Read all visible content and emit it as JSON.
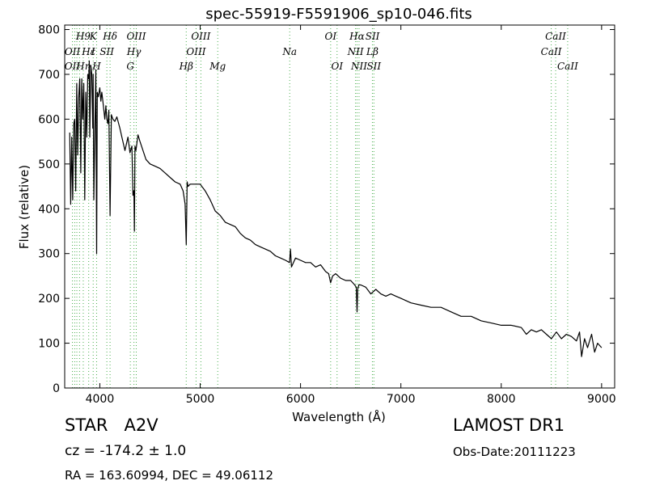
{
  "chart_data": {
    "type": "line",
    "title": "spec-55919-F5591906_sp10-046.fits",
    "xlabel": "Wavelength (Å)",
    "ylabel": "Flux (relative)",
    "xlim": [
      3650,
      9130
    ],
    "ylim": [
      0,
      810
    ],
    "xticks": [
      4000,
      5000,
      6000,
      7000,
      8000,
      9000
    ],
    "yticks": [
      0,
      100,
      200,
      300,
      400,
      500,
      600,
      700,
      800
    ],
    "grid": false,
    "series": [
      {
        "color": "#000000",
        "x": [
          3700,
          3710,
          3720,
          3730,
          3740,
          3750,
          3760,
          3770,
          3780,
          3790,
          3800,
          3810,
          3820,
          3830,
          3840,
          3850,
          3860,
          3870,
          3880,
          3889,
          3895,
          3900,
          3910,
          3920,
          3930,
          3934,
          3940,
          3950,
          3960,
          3968,
          3975,
          3985,
          4000,
          4010,
          4020,
          4030,
          4040,
          4050,
          4060,
          4070,
          4080,
          4090,
          4102,
          4115,
          4130,
          4150,
          4170,
          4200,
          4220,
          4250,
          4280,
          4300,
          4320,
          4330,
          4340,
          4345,
          4350,
          4360,
          4380,
          4400,
          4430,
          4460,
          4500,
          4550,
          4600,
          4650,
          4700,
          4750,
          4800,
          4830,
          4850,
          4861,
          4870,
          4880,
          4900,
          4950,
          5000,
          5050,
          5100,
          5150,
          5200,
          5250,
          5300,
          5350,
          5400,
          5450,
          5500,
          5550,
          5600,
          5650,
          5700,
          5750,
          5800,
          5850,
          5890,
          5900,
          5910,
          5950,
          6000,
          6050,
          6100,
          6150,
          6200,
          6250,
          6280,
          6300,
          6320,
          6350,
          6400,
          6450,
          6500,
          6540,
          6555,
          6563,
          6570,
          6580,
          6600,
          6650,
          6700,
          6750,
          6800,
          6850,
          6900,
          6950,
          7000,
          7100,
          7200,
          7300,
          7400,
          7500,
          7600,
          7700,
          7800,
          7900,
          8000,
          8100,
          8200,
          8250,
          8300,
          8350,
          8400,
          8450,
          8500,
          8550,
          8600,
          8650,
          8700,
          8750,
          8780,
          8800,
          8830,
          8860,
          8900,
          8930,
          8960,
          9000
        ],
        "y": [
          570,
          410,
          560,
          420,
          590,
          600,
          440,
          680,
          520,
          650,
          690,
          480,
          690,
          600,
          680,
          420,
          660,
          560,
          700,
          690,
          730,
          560,
          720,
          700,
          580,
          700,
          420,
          560,
          710,
          300,
          660,
          650,
          670,
          640,
          660,
          640,
          620,
          600,
          630,
          600,
          590,
          620,
          385,
          610,
          600,
          595,
          605,
          580,
          560,
          530,
          560,
          525,
          540,
          430,
          440,
          350,
          540,
          530,
          565,
          550,
          530,
          510,
          500,
          495,
          490,
          480,
          470,
          460,
          455,
          440,
          410,
          320,
          460,
          450,
          455,
          455,
          455,
          440,
          420,
          395,
          385,
          370,
          365,
          360,
          345,
          335,
          330,
          320,
          315,
          310,
          305,
          295,
          290,
          285,
          280,
          310,
          270,
          290,
          285,
          280,
          280,
          270,
          275,
          260,
          255,
          235,
          250,
          255,
          245,
          240,
          240,
          230,
          225,
          170,
          220,
          230,
          230,
          225,
          210,
          220,
          210,
          205,
          210,
          205,
          200,
          190,
          185,
          180,
          180,
          170,
          160,
          160,
          150,
          145,
          140,
          140,
          135,
          120,
          130,
          125,
          130,
          120,
          110,
          125,
          110,
          120,
          115,
          105,
          125,
          70,
          110,
          90,
          120,
          80,
          100,
          90
        ]
      }
    ],
    "annotations": [
      {
        "label": "H9",
        "x": 3835,
        "row": 0
      },
      {
        "label": "K",
        "x": 3934,
        "row": 0
      },
      {
        "label": "Hδ",
        "x": 4102,
        "row": 0
      },
      {
        "label": "OIII",
        "x": 4363,
        "row": 0
      },
      {
        "label": "OIII",
        "x": 5007,
        "row": 0
      },
      {
        "label": "OI",
        "x": 6300,
        "row": 0
      },
      {
        "label": "Hα",
        "x": 6563,
        "row": 0
      },
      {
        "label": "SII",
        "x": 6717,
        "row": 0
      },
      {
        "label": "CaII",
        "x": 8542,
        "row": 0
      },
      {
        "label": "OII",
        "x": 3727,
        "row": 1
      },
      {
        "label": "Hε",
        "x": 3889,
        "row": 1
      },
      {
        "label": "I",
        "x": 3934,
        "row": 1
      },
      {
        "label": "SII",
        "x": 4070,
        "row": 1
      },
      {
        "label": "Hγ",
        "x": 4340,
        "row": 1
      },
      {
        "label": "OIII",
        "x": 4959,
        "row": 1
      },
      {
        "label": "Na",
        "x": 5892,
        "row": 1
      },
      {
        "label": "NII",
        "x": 6548,
        "row": 1
      },
      {
        "label": "Lβ",
        "x": 6716,
        "row": 1
      },
      {
        "label": "CaII",
        "x": 8498,
        "row": 1
      },
      {
        "label": "OII",
        "x": 3726,
        "row": 2
      },
      {
        "label": "Hη",
        "x": 3835,
        "row": 2
      },
      {
        "label": "H",
        "x": 3968,
        "row": 2
      },
      {
        "label": "G",
        "x": 4304,
        "row": 2
      },
      {
        "label": "Hβ",
        "x": 4861,
        "row": 2
      },
      {
        "label": "Mg",
        "x": 5175,
        "row": 2
      },
      {
        "label": "OI",
        "x": 6364,
        "row": 2
      },
      {
        "label": "NII",
        "x": 6583,
        "row": 2
      },
      {
        "label": "SII",
        "x": 6731,
        "row": 2
      },
      {
        "label": "CaII",
        "x": 8662,
        "row": 2
      }
    ],
    "line_marks": [
      3727,
      3750,
      3771,
      3798,
      3835,
      3889,
      3934,
      3968,
      4070,
      4102,
      4304,
      4340,
      4363,
      4861,
      4959,
      5007,
      5175,
      5892,
      6300,
      6364,
      6548,
      6563,
      6583,
      6716,
      6731,
      8498,
      8542,
      8662
    ]
  },
  "info": {
    "object": "STAR   A2V",
    "survey": "LAMOST DR1",
    "cz": "cz = -174.2 ± 1.0",
    "obs_date": "Obs-Date:20111223",
    "coords": "RA = 163.60994, DEC = 49.06112"
  }
}
